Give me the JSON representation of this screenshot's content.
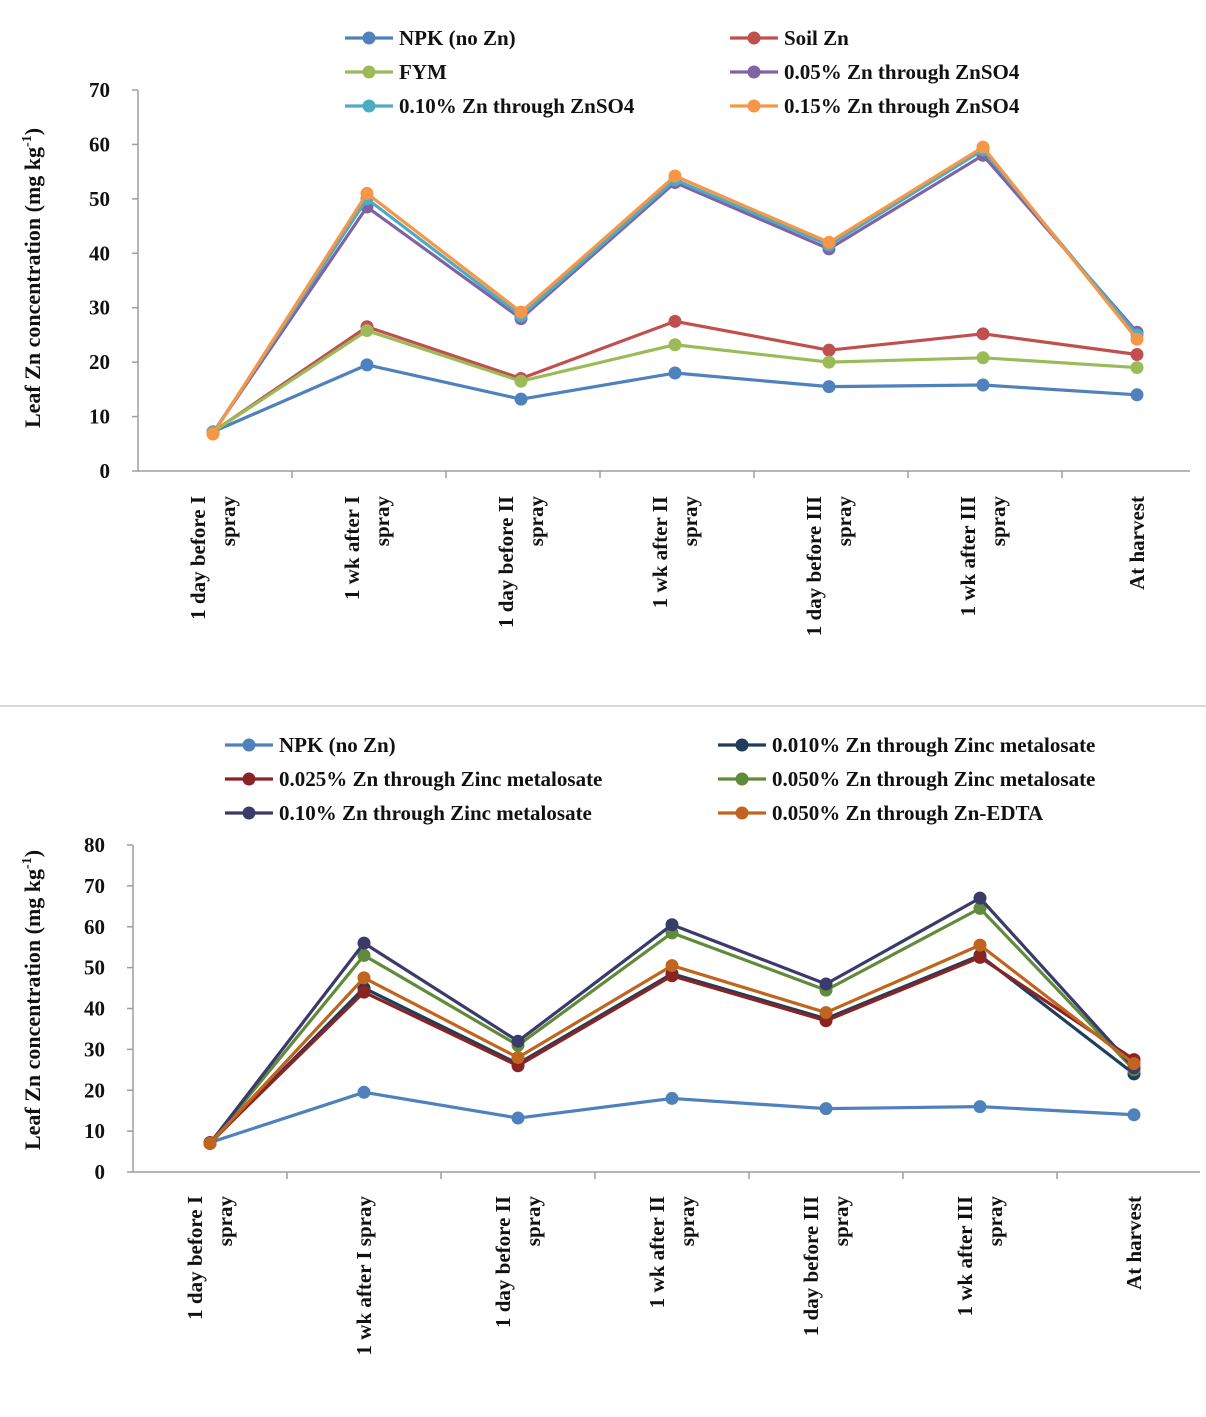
{
  "chart_data": [
    {
      "type": "line",
      "title": "",
      "xlabel": "",
      "ylabel": "Leaf  Zn concentration (mg kg",
      "ylabel_sup": "-1",
      "ylabel_close": ")",
      "ylim": [
        0,
        70
      ],
      "yticks": [
        0,
        10,
        20,
        30,
        40,
        50,
        60,
        70
      ],
      "grid": false,
      "legend": "top",
      "categories": [
        [
          "1 day before I",
          "spray"
        ],
        [
          "1 wk after I",
          "spray"
        ],
        [
          "1 day before II",
          "spray"
        ],
        [
          "1 wk after II",
          "spray"
        ],
        [
          "1 day before III",
          "spray"
        ],
        [
          "1 wk after III",
          "spray"
        ],
        [
          "At harvest"
        ]
      ],
      "series": [
        {
          "name": "NPK (no Zn)",
          "color": "#4f81bd",
          "values": [
            7.2,
            19.5,
            13.2,
            18.0,
            15.5,
            15.8,
            14.0
          ]
        },
        {
          "name": "Soil Zn",
          "color": "#c0504d",
          "values": [
            7.2,
            26.5,
            17.0,
            27.5,
            22.2,
            25.2,
            21.4
          ]
        },
        {
          "name": "FYM",
          "color": "#9bbb59",
          "values": [
            7.2,
            25.8,
            16.5,
            23.2,
            20.0,
            20.8,
            19.0
          ]
        },
        {
          "name": "0.05% Zn through ZnSO4",
          "color": "#8064a2",
          "values": [
            7.0,
            48.5,
            28.0,
            53.0,
            40.8,
            58.0,
            25.5
          ]
        },
        {
          "name": "0.10% Zn through ZnSO4",
          "color": "#4bacc6",
          "values": [
            7.0,
            50.0,
            28.5,
            53.5,
            41.5,
            59.0,
            25.0
          ]
        },
        {
          "name": "0.15% Zn through ZnSO4",
          "color": "#f79646",
          "values": [
            6.8,
            51.0,
            29.2,
            54.2,
            42.0,
            59.5,
            24.2
          ]
        }
      ]
    },
    {
      "type": "line",
      "title": "",
      "xlabel": "",
      "ylabel": "Leaf  Zn concentration (mg kg",
      "ylabel_sup": "-1",
      "ylabel_close": ")",
      "ylim": [
        0,
        80
      ],
      "yticks": [
        0,
        10,
        20,
        30,
        40,
        50,
        60,
        70,
        80
      ],
      "grid": false,
      "legend": "top",
      "categories": [
        [
          "1 day before I",
          "spray"
        ],
        [
          "1 wk after I spray"
        ],
        [
          "1 day before II",
          "spray"
        ],
        [
          "1 wk after II",
          "spray"
        ],
        [
          "1 day before III",
          "spray"
        ],
        [
          "1 wk after III",
          "spray"
        ],
        [
          "At harvest"
        ]
      ],
      "series": [
        {
          "name": "NPK (no Zn)",
          "color": "#4f81bd",
          "values": [
            7.2,
            19.5,
            13.2,
            18.0,
            15.5,
            16.0,
            14.0
          ]
        },
        {
          "name": "0.010% Zn through Zinc metalosate",
          "color": "#1f3d5c",
          "values": [
            7.0,
            45.0,
            26.5,
            48.5,
            37.5,
            53.0,
            24.0
          ]
        },
        {
          "name": "0.025% Zn through Zinc metalosate",
          "color": "#8b2323",
          "values": [
            7.2,
            44.0,
            26.0,
            48.0,
            37.0,
            52.5,
            27.5
          ]
        },
        {
          "name": "0.050% Zn through Zinc metalosate",
          "color": "#5f8b3a",
          "values": [
            7.0,
            53.0,
            31.0,
            58.5,
            44.5,
            64.5,
            25.0
          ]
        },
        {
          "name": "0.10% Zn through Zinc metalosate",
          "color": "#3b3b6b",
          "values": [
            7.0,
            56.0,
            32.0,
            60.5,
            46.0,
            67.0,
            25.5
          ]
        },
        {
          "name": "0.050% Zn through Zn-EDTA",
          "color": "#c0641e",
          "values": [
            7.0,
            47.5,
            28.0,
            50.5,
            39.0,
            55.5,
            26.5
          ]
        }
      ]
    }
  ]
}
